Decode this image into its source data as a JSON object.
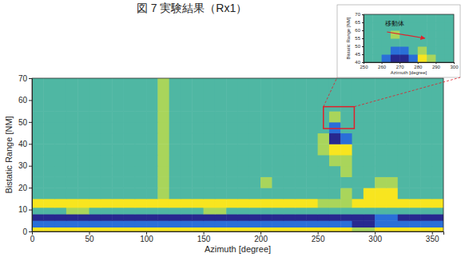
{
  "chart_data": [
    {
      "type": "heatmap",
      "title": "図 7 実験結果（Rx1）",
      "x_label": "Azimuth [degree]",
      "y_label": "Bistatic Range [NM]",
      "xlim": [
        0,
        360
      ],
      "ylim": [
        0,
        70
      ],
      "xticks": [
        0,
        50,
        100,
        150,
        200,
        250,
        300,
        350
      ],
      "yticks": [
        0,
        10,
        20,
        30,
        40,
        50,
        60,
        70
      ],
      "grid": false,
      "x_edges": [
        0,
        10,
        20,
        30,
        40,
        50,
        60,
        70,
        80,
        90,
        100,
        110,
        120,
        130,
        140,
        150,
        160,
        170,
        180,
        190,
        200,
        210,
        220,
        230,
        240,
        250,
        260,
        270,
        280,
        290,
        300,
        310,
        320,
        330,
        340,
        350,
        360
      ],
      "y_edges": [
        0,
        2,
        5,
        8,
        11,
        15,
        20,
        25,
        30,
        35,
        40,
        45,
        50,
        55,
        70
      ],
      "zlim": [
        0,
        4
      ],
      "cells": [
        [
          4,
          4,
          4,
          4,
          4,
          4,
          4,
          4,
          4,
          4,
          4,
          4,
          4,
          4,
          4,
          4,
          4,
          4,
          4,
          4,
          4,
          4,
          4,
          4,
          4,
          4,
          4,
          4,
          3,
          3,
          4,
          4,
          4,
          4,
          4,
          4
        ],
        [
          1,
          1,
          1,
          1,
          1,
          1,
          1,
          1,
          1,
          1,
          1,
          1,
          1,
          1,
          1,
          1,
          1,
          1,
          1,
          1,
          1,
          1,
          1,
          1,
          1,
          1,
          1,
          1,
          0,
          0,
          1,
          1,
          1,
          1,
          1,
          1
        ],
        [
          0,
          0,
          0,
          0,
          0,
          0,
          0,
          0,
          0,
          0,
          0,
          0,
          0,
          0,
          0,
          0,
          0,
          0,
          0,
          0,
          0,
          0,
          0,
          0,
          0,
          0,
          0,
          0,
          0,
          0,
          1,
          1,
          0,
          0,
          0,
          0
        ],
        [
          2,
          2,
          2,
          3,
          3,
          2,
          2,
          2,
          2,
          2,
          2,
          2,
          2,
          2,
          2,
          3,
          3,
          2,
          2,
          2,
          2,
          2,
          2,
          2,
          2,
          2,
          2,
          2,
          2,
          2,
          2,
          2,
          2,
          2,
          2,
          2
        ],
        [
          4,
          4,
          4,
          4,
          4,
          4,
          4,
          4,
          4,
          4,
          4,
          4,
          4,
          4,
          4,
          4,
          4,
          4,
          4,
          4,
          4,
          4,
          4,
          4,
          4,
          3,
          3,
          3,
          4,
          4,
          4,
          4,
          4,
          4,
          4,
          4
        ],
        [
          2,
          2,
          2,
          2,
          2,
          2,
          2,
          2,
          2,
          2,
          2,
          3,
          2,
          2,
          2,
          2,
          2,
          2,
          2,
          2,
          2,
          2,
          2,
          2,
          2,
          2,
          2,
          3,
          2,
          4,
          4,
          4,
          2,
          2,
          2,
          2
        ],
        [
          2,
          2,
          2,
          2,
          2,
          2,
          2,
          2,
          2,
          2,
          2,
          3,
          2,
          2,
          2,
          2,
          2,
          2,
          2,
          2,
          3,
          2,
          2,
          2,
          2,
          2,
          2,
          2,
          2,
          2,
          3,
          3,
          2,
          2,
          2,
          2
        ],
        [
          2,
          2,
          2,
          2,
          2,
          2,
          2,
          2,
          2,
          2,
          2,
          3,
          2,
          2,
          2,
          2,
          2,
          2,
          2,
          2,
          2,
          2,
          2,
          2,
          2,
          2,
          2,
          3,
          2,
          2,
          2,
          2,
          2,
          2,
          2,
          2
        ],
        [
          2,
          2,
          2,
          2,
          2,
          2,
          2,
          2,
          2,
          2,
          2,
          3,
          2,
          2,
          2,
          2,
          2,
          2,
          2,
          2,
          2,
          2,
          2,
          2,
          2,
          2,
          3,
          3,
          2,
          2,
          2,
          2,
          2,
          2,
          2,
          2
        ],
        [
          2,
          2,
          2,
          2,
          2,
          2,
          2,
          2,
          2,
          2,
          2,
          3,
          2,
          2,
          2,
          2,
          2,
          2,
          2,
          2,
          2,
          2,
          2,
          2,
          2,
          3,
          4,
          4,
          2,
          2,
          2,
          2,
          2,
          2,
          2,
          2
        ],
        [
          2,
          2,
          2,
          2,
          2,
          2,
          2,
          2,
          2,
          2,
          2,
          3,
          2,
          2,
          2,
          2,
          2,
          2,
          2,
          2,
          2,
          2,
          2,
          2,
          2,
          3,
          0,
          1,
          2,
          2,
          2,
          2,
          2,
          2,
          2,
          2
        ],
        [
          2,
          2,
          2,
          2,
          2,
          2,
          2,
          2,
          2,
          2,
          2,
          3,
          2,
          2,
          2,
          2,
          2,
          2,
          2,
          2,
          2,
          2,
          2,
          2,
          2,
          2,
          1,
          2,
          2,
          2,
          2,
          2,
          2,
          2,
          2,
          2
        ],
        [
          2,
          2,
          2,
          2,
          2,
          2,
          2,
          2,
          2,
          2,
          2,
          3,
          2,
          2,
          2,
          2,
          2,
          2,
          2,
          2,
          2,
          2,
          2,
          2,
          2,
          2,
          3,
          2,
          2,
          2,
          2,
          2,
          2,
          2,
          2,
          2
        ],
        [
          2,
          2,
          2,
          2,
          2,
          2,
          2,
          2,
          2,
          2,
          2,
          3,
          2,
          2,
          2,
          2,
          2,
          2,
          2,
          2,
          2,
          2,
          2,
          2,
          2,
          2,
          2,
          2,
          2,
          2,
          2,
          2,
          2,
          2,
          2,
          2
        ]
      ],
      "zoom_box": {
        "xlim": [
          255,
          282
        ],
        "ylim": [
          47,
          57
        ]
      }
    },
    {
      "type": "heatmap",
      "x_label": "Azimuth [degree]",
      "y_label": "Bistatic Range [NM]",
      "xlim": [
        250,
        300
      ],
      "ylim": [
        40,
        70
      ],
      "xticks": [
        250,
        260,
        270,
        280,
        290,
        300
      ],
      "yticks": [
        40,
        45,
        50,
        55,
        60,
        65,
        70
      ],
      "grid": false,
      "x_edges": [
        250,
        255,
        260,
        265,
        270,
        275,
        280,
        285,
        290,
        295,
        300
      ],
      "y_edges": [
        40,
        45,
        50,
        55,
        60,
        65,
        70
      ],
      "zlim": [
        0,
        4
      ],
      "cells": [
        [
          2,
          2,
          1,
          0,
          0,
          1,
          4,
          3,
          2,
          2
        ],
        [
          2,
          2,
          2,
          1,
          1,
          2,
          3,
          2,
          2,
          2
        ],
        [
          2,
          2,
          2,
          2,
          2,
          2,
          2,
          2,
          2,
          2
        ],
        [
          2,
          2,
          2,
          3,
          2,
          2,
          2,
          2,
          2,
          2
        ],
        [
          2,
          2,
          2,
          2,
          2,
          2,
          2,
          2,
          2,
          2
        ],
        [
          2,
          2,
          2,
          2,
          2,
          2,
          2,
          2,
          2,
          2
        ]
      ],
      "annotations": [
        {
          "text": "移動体",
          "x": 262,
          "y": 63,
          "arrow": {
            "x": [
              263,
              284
            ],
            "y": [
              59,
              55
            ]
          }
        }
      ]
    }
  ]
}
